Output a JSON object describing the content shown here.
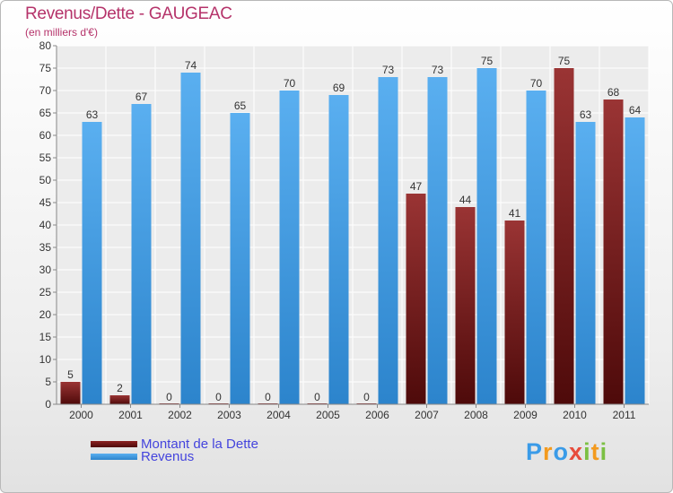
{
  "chart_data": {
    "type": "bar",
    "title": "Revenus/Dette - GAUGEAC",
    "subtitle": "(en milliers d'€)",
    "xlabel": "",
    "ylabel": "",
    "ylim": [
      0,
      80
    ],
    "yticks": [
      0,
      5,
      10,
      15,
      20,
      25,
      30,
      35,
      40,
      45,
      50,
      55,
      60,
      65,
      70,
      75,
      80
    ],
    "grid": true,
    "categories": [
      "2000",
      "2001",
      "2002",
      "2003",
      "2004",
      "2005",
      "2006",
      "2007",
      "2008",
      "2009",
      "2010",
      "2011"
    ],
    "series": [
      {
        "name": "Montant de la Dette",
        "color": "#7a1a1a",
        "values": [
          5,
          2,
          0,
          0,
          0,
          0,
          0,
          47,
          44,
          41,
          75,
          68
        ]
      },
      {
        "name": "Revenus",
        "color": "#4aa0e6",
        "values": [
          63,
          67,
          74,
          65,
          70,
          69,
          73,
          73,
          75,
          70,
          63,
          64
        ]
      }
    ],
    "legend_position": "bottom-left"
  },
  "legend": {
    "dette_label": "Montant de la Dette",
    "revenus_label": "Revenus"
  },
  "logo": {
    "letters": [
      "P",
      "r",
      "o",
      "x",
      "i",
      "t",
      "i"
    ],
    "colors": [
      "#3a9be8",
      "#f39a1e",
      "#3a9be8",
      "#e74c3c",
      "#7bc043",
      "#f39a1e",
      "#7bc043"
    ]
  }
}
